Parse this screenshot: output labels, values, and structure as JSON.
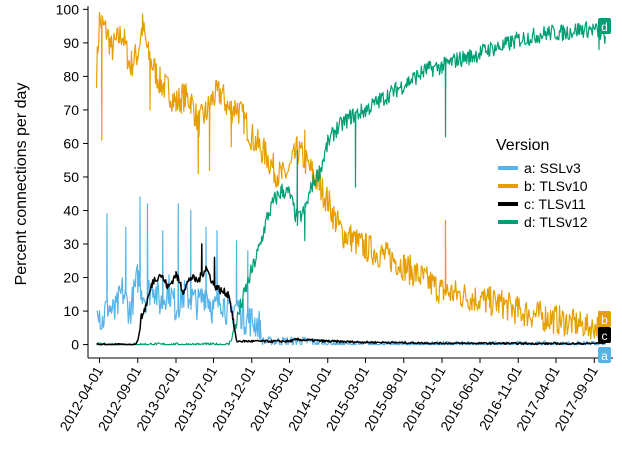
{
  "chart_data": {
    "type": "line",
    "title": "",
    "xlabel": "",
    "ylabel": "Percent connections per day",
    "xlim": [
      "2012-02-15",
      "2017-11-15"
    ],
    "ylim": [
      -4,
      101
    ],
    "grid": false,
    "x_ticks": [
      "2012-04-01",
      "2012-09-01",
      "2013-02-01",
      "2013-07-01",
      "2013-12-01",
      "2014-05-01",
      "2014-10-01",
      "2015-03-01",
      "2015-08-01",
      "2016-01-01",
      "2016-06-01",
      "2016-11-01",
      "2017-04-01",
      "2017-09-01"
    ],
    "y_ticks": [
      0,
      10,
      20,
      30,
      40,
      50,
      60,
      70,
      80,
      90,
      100
    ],
    "legend": {
      "title": "Version",
      "position": "right"
    },
    "series": [
      {
        "name": "a: SSLv3",
        "key": "a",
        "color": "#56B4E9",
        "points": [
          [
            "2012-03-20",
            15
          ],
          [
            "2012-04-10",
            6
          ],
          [
            "2012-05-01",
            12
          ],
          [
            "2012-06-01",
            9
          ],
          [
            "2012-07-01",
            16
          ],
          [
            "2012-08-01",
            10
          ],
          [
            "2012-09-01",
            20
          ],
          [
            "2012-10-01",
            14
          ],
          [
            "2012-11-01",
            18
          ],
          [
            "2012-12-01",
            12
          ],
          [
            "2013-01-01",
            17
          ],
          [
            "2013-02-01",
            11
          ],
          [
            "2013-03-01",
            15
          ],
          [
            "2013-04-01",
            14
          ],
          [
            "2013-05-01",
            12
          ],
          [
            "2013-06-01",
            16
          ],
          [
            "2013-07-01",
            10
          ],
          [
            "2013-08-01",
            14
          ],
          [
            "2013-09-01",
            9
          ],
          [
            "2013-10-01",
            12
          ],
          [
            "2013-11-01",
            8
          ],
          [
            "2013-12-01",
            7
          ],
          [
            "2014-01-01",
            6
          ],
          [
            "2014-01-10",
            1
          ],
          [
            "2014-04-01",
            1
          ],
          [
            "2014-07-01",
            1
          ],
          [
            "2014-10-01",
            0.5
          ],
          [
            "2014-12-01",
            0
          ],
          [
            "2017-10-15",
            0
          ]
        ],
        "spikes": [
          [
            "2012-05-01",
            39
          ],
          [
            "2012-07-15",
            35
          ],
          [
            "2012-09-10",
            44
          ],
          [
            "2012-10-10",
            42
          ],
          [
            "2012-12-10",
            34
          ],
          [
            "2013-02-10",
            42
          ],
          [
            "2013-04-01",
            40
          ],
          [
            "2013-06-01",
            35
          ],
          [
            "2013-07-15",
            34
          ],
          [
            "2013-10-01",
            31
          ],
          [
            "2013-11-15",
            28
          ]
        ],
        "end_label": "a"
      },
      {
        "name": "b: TLSv10",
        "key": "b",
        "color": "#E69F00",
        "points": [
          [
            "2012-03-20",
            81
          ],
          [
            "2012-04-01",
            97
          ],
          [
            "2012-05-01",
            93
          ],
          [
            "2012-05-20",
            88
          ],
          [
            "2012-07-01",
            93
          ],
          [
            "2012-08-01",
            83
          ],
          [
            "2012-09-01",
            87
          ],
          [
            "2012-09-20",
            95
          ],
          [
            "2012-10-15",
            86
          ],
          [
            "2012-12-01",
            78
          ],
          [
            "2013-01-01",
            76
          ],
          [
            "2013-02-01",
            72
          ],
          [
            "2013-03-01",
            74
          ],
          [
            "2013-04-01",
            73
          ],
          [
            "2013-05-01",
            66
          ],
          [
            "2013-06-01",
            69
          ],
          [
            "2013-07-01",
            74
          ],
          [
            "2013-08-01",
            75
          ],
          [
            "2013-09-01",
            70
          ],
          [
            "2013-10-01",
            71
          ],
          [
            "2013-11-01",
            67
          ],
          [
            "2013-12-01",
            62
          ],
          [
            "2014-01-01",
            59
          ],
          [
            "2014-02-01",
            56
          ],
          [
            "2014-03-01",
            52
          ],
          [
            "2014-04-01",
            50
          ],
          [
            "2014-05-01",
            52
          ],
          [
            "2014-06-01",
            58
          ],
          [
            "2014-07-01",
            55
          ],
          [
            "2014-08-01",
            51
          ],
          [
            "2014-09-01",
            47
          ],
          [
            "2014-10-01",
            43
          ],
          [
            "2014-11-01",
            37
          ],
          [
            "2014-12-01",
            33
          ],
          [
            "2015-01-01",
            32
          ],
          [
            "2015-02-01",
            30
          ],
          [
            "2015-03-01",
            29
          ],
          [
            "2015-05-01",
            27
          ],
          [
            "2015-07-01",
            25
          ],
          [
            "2015-09-01",
            22
          ],
          [
            "2015-11-01",
            19
          ],
          [
            "2016-01-01",
            16
          ],
          [
            "2016-03-01",
            15
          ],
          [
            "2016-05-01",
            14
          ],
          [
            "2016-07-01",
            13
          ],
          [
            "2016-09-01",
            12
          ],
          [
            "2016-11-01",
            10
          ],
          [
            "2017-01-01",
            9
          ],
          [
            "2017-03-01",
            8
          ],
          [
            "2017-05-01",
            7
          ],
          [
            "2017-07-01",
            6
          ],
          [
            "2017-09-01",
            5
          ],
          [
            "2017-10-15",
            7
          ]
        ],
        "spikes": [
          [
            "2012-04-10",
            61
          ],
          [
            "2012-10-20",
            70
          ],
          [
            "2013-05-01",
            51
          ],
          [
            "2013-06-15",
            52
          ],
          [
            "2013-09-10",
            59
          ],
          [
            "2014-07-01",
            64
          ],
          [
            "2016-01-15",
            37
          ],
          [
            "2017-09-20",
            10
          ]
        ],
        "end_label": "b"
      },
      {
        "name": "c: TLSv11",
        "key": "c",
        "color": "#000000",
        "points": [
          [
            "2012-03-20",
            0
          ],
          [
            "2012-08-20",
            0
          ],
          [
            "2012-09-01",
            1
          ],
          [
            "2012-09-15",
            8
          ],
          [
            "2012-10-01",
            11
          ],
          [
            "2012-11-01",
            19
          ],
          [
            "2012-12-01",
            21
          ],
          [
            "2013-01-01",
            17
          ],
          [
            "2013-02-01",
            21
          ],
          [
            "2013-03-01",
            16
          ],
          [
            "2013-04-01",
            20
          ],
          [
            "2013-05-01",
            19
          ],
          [
            "2013-06-01",
            23
          ],
          [
            "2013-07-01",
            18
          ],
          [
            "2013-08-01",
            16
          ],
          [
            "2013-09-01",
            15
          ],
          [
            "2013-09-20",
            6
          ],
          [
            "2013-10-01",
            1
          ],
          [
            "2014-01-01",
            1
          ],
          [
            "2014-05-01",
            1
          ],
          [
            "2014-06-01",
            1.5
          ],
          [
            "2014-10-01",
            1
          ],
          [
            "2015-03-01",
            0.7
          ],
          [
            "2016-01-01",
            0.4
          ],
          [
            "2017-04-01",
            0.3
          ],
          [
            "2017-08-01",
            0.3
          ],
          [
            "2017-10-15",
            0.5
          ]
        ],
        "spikes": [
          [
            "2013-05-15",
            30
          ],
          [
            "2013-07-05",
            26
          ]
        ],
        "end_label": "c"
      },
      {
        "name": "d: TLSv12",
        "key": "d",
        "color": "#009E73",
        "points": [
          [
            "2012-03-20",
            0
          ],
          [
            "2013-09-01",
            0
          ],
          [
            "2013-09-20",
            4
          ],
          [
            "2013-11-01",
            15
          ],
          [
            "2013-12-01",
            22
          ],
          [
            "2014-01-01",
            29
          ],
          [
            "2014-02-01",
            38
          ],
          [
            "2014-03-01",
            43
          ],
          [
            "2014-04-01",
            46
          ],
          [
            "2014-05-01",
            45
          ],
          [
            "2014-06-01",
            37
          ],
          [
            "2014-07-01",
            40
          ],
          [
            "2014-08-01",
            48
          ],
          [
            "2014-09-01",
            52
          ],
          [
            "2014-10-01",
            60
          ],
          [
            "2014-11-01",
            64
          ],
          [
            "2014-12-01",
            66
          ],
          [
            "2015-01-01",
            68
          ],
          [
            "2015-03-01",
            70
          ],
          [
            "2015-05-01",
            73
          ],
          [
            "2015-07-01",
            76
          ],
          [
            "2015-09-01",
            79
          ],
          [
            "2015-11-01",
            82
          ],
          [
            "2016-01-01",
            83
          ],
          [
            "2016-03-01",
            85
          ],
          [
            "2016-05-01",
            86
          ],
          [
            "2016-07-01",
            88
          ],
          [
            "2016-09-01",
            89
          ],
          [
            "2016-11-01",
            91
          ],
          [
            "2017-01-01",
            92
          ],
          [
            "2017-03-01",
            93
          ],
          [
            "2017-05-01",
            93
          ],
          [
            "2017-07-01",
            94
          ],
          [
            "2017-09-01",
            94
          ],
          [
            "2017-10-15",
            92
          ]
        ],
        "spikes": [
          [
            "2014-07-01",
            31
          ],
          [
            "2014-06-01",
            58
          ],
          [
            "2015-01-20",
            47
          ],
          [
            "2016-01-15",
            62
          ],
          [
            "2017-09-20",
            88
          ]
        ],
        "end_label": "d"
      }
    ]
  }
}
